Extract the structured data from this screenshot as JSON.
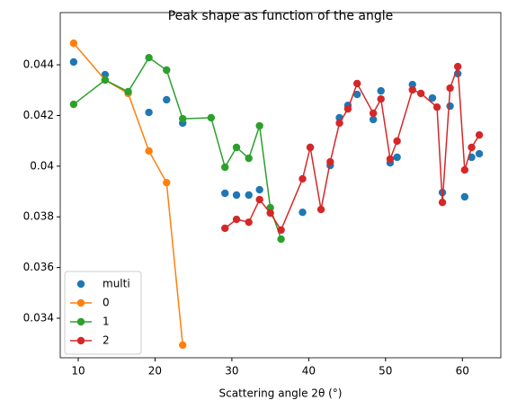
{
  "chart_data": {
    "type": "line",
    "title": "Peak shape as function of the angle",
    "xlabel": "Scattering angle 2θ (°)",
    "xlim": [
      7.66,
      65.0
    ],
    "ylim": [
      0.03244,
      0.04606
    ],
    "xticks": [
      10,
      20,
      30,
      40,
      50,
      60
    ],
    "yticks": [
      0.034,
      0.036,
      0.038,
      0.04,
      0.042,
      0.044
    ],
    "legend": "lower left",
    "series": [
      {
        "name": "multi",
        "color": "#1f77b4",
        "linestyle": "none",
        "x": [
          9.4,
          13.5,
          19.2,
          21.5,
          23.6,
          29.1,
          30.6,
          32.2,
          33.6,
          39.2,
          40.2,
          42.8,
          44.0,
          45.1,
          46.3,
          48.4,
          49.4,
          50.6,
          51.5,
          53.5,
          56.1,
          57.4,
          58.4,
          59.4,
          60.3,
          61.2,
          62.2
        ],
        "values": [
          0.04411,
          0.04361,
          0.04212,
          0.04262,
          0.0417,
          0.03893,
          0.03886,
          0.03886,
          0.03907,
          0.03818,
          0.04074,
          0.04003,
          0.04191,
          0.0424,
          0.04283,
          0.04184,
          0.04297,
          0.04013,
          0.04035,
          0.04322,
          0.04269,
          0.03896,
          0.04237,
          0.04365,
          0.03879,
          0.04035,
          0.04049
        ]
      },
      {
        "name": "0",
        "color": "#ff7f0e",
        "linestyle": "-",
        "x": [
          9.4,
          13.5,
          16.5,
          19.2,
          21.5,
          23.6
        ],
        "values": [
          0.04485,
          0.0434,
          0.04287,
          0.0406,
          0.03935,
          0.03294
        ]
      },
      {
        "name": "1",
        "color": "#2ca02c",
        "linestyle": "-",
        "x": [
          9.4,
          13.5,
          16.5,
          19.2,
          21.5,
          23.6,
          27.3,
          29.1,
          30.6,
          32.2,
          33.6,
          35.0,
          36.4
        ],
        "values": [
          0.04244,
          0.0434,
          0.04294,
          0.04428,
          0.04379,
          0.04187,
          0.04191,
          0.03996,
          0.04074,
          0.04031,
          0.04159,
          0.03836,
          0.03712
        ]
      },
      {
        "name": "2",
        "color": "#d62728",
        "linestyle": "-",
        "x": [
          29.1,
          30.6,
          32.2,
          33.6,
          35.0,
          36.4,
          39.2,
          40.2,
          41.6,
          42.8,
          44.0,
          45.1,
          46.3,
          48.4,
          49.4,
          50.6,
          51.5,
          53.5,
          54.6,
          56.7,
          57.4,
          58.4,
          59.4,
          60.3,
          61.2,
          62.2
        ],
        "values": [
          0.03755,
          0.0379,
          0.03779,
          0.03868,
          0.03815,
          0.03748,
          0.0395,
          0.04074,
          0.03829,
          0.04017,
          0.0417,
          0.04226,
          0.04326,
          0.04209,
          0.04265,
          0.04028,
          0.04099,
          0.04301,
          0.04287,
          0.04233,
          0.03857,
          0.04308,
          0.04393,
          0.03985,
          0.04074,
          0.04123
        ]
      }
    ]
  }
}
